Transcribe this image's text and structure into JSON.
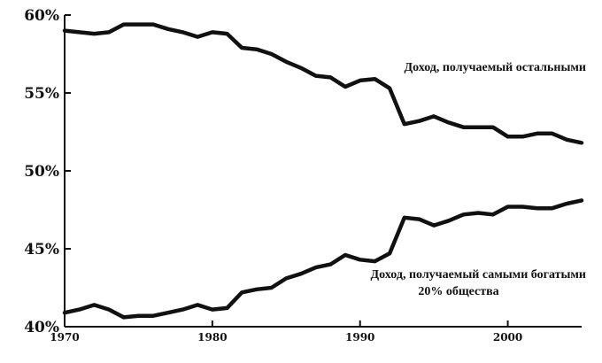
{
  "chart_data": {
    "type": "line",
    "title": "",
    "xlabel": "",
    "ylabel": "",
    "xlim": [
      1970,
      2005
    ],
    "ylim": [
      40,
      60
    ],
    "grid": false,
    "legend": "none",
    "x_ticks": [
      1970,
      1980,
      1990,
      2000
    ],
    "x_tick_labels": [
      "1970",
      "1980",
      "1990",
      "2000"
    ],
    "y_ticks": [
      40,
      45,
      50,
      55,
      60
    ],
    "y_tick_labels": [
      "40%",
      "45%",
      "50%",
      "55%",
      "60%"
    ],
    "x": [
      1970,
      1971,
      1972,
      1973,
      1974,
      1975,
      1976,
      1977,
      1978,
      1979,
      1980,
      1981,
      1982,
      1983,
      1984,
      1985,
      1986,
      1987,
      1988,
      1989,
      1990,
      1991,
      1992,
      1993,
      1994,
      1995,
      1996,
      1997,
      1998,
      1999,
      2000,
      2001,
      2002,
      2003,
      2004,
      2005
    ],
    "series": [
      {
        "values": [
          59.0,
          58.9,
          58.8,
          58.9,
          59.4,
          59.4,
          59.4,
          59.1,
          58.9,
          58.6,
          58.9,
          58.8,
          57.9,
          57.8,
          57.5,
          57.0,
          56.6,
          56.1,
          56.0,
          55.4,
          55.8,
          55.9,
          55.3,
          53.0,
          53.2,
          53.5,
          53.1,
          52.8,
          52.8,
          52.8,
          52.2,
          52.2,
          52.4,
          52.4,
          52.0,
          51.8
        ],
        "color": "#111111"
      },
      {
        "values": [
          40.9,
          41.1,
          41.4,
          41.1,
          40.6,
          40.7,
          40.7,
          40.9,
          41.1,
          41.4,
          41.1,
          41.2,
          42.2,
          42.4,
          42.5,
          43.1,
          43.4,
          43.8,
          44.0,
          44.6,
          44.3,
          44.2,
          44.7,
          47.0,
          46.9,
          46.5,
          46.8,
          47.2,
          47.3,
          47.2,
          47.7,
          47.7,
          47.6,
          47.6,
          47.9,
          48.1
        ],
        "color": "#111111"
      }
    ],
    "annotations": [
      "Доход, получаемый остальными",
      "Доход, получаемый самыми богатыми",
      "20% общества"
    ]
  }
}
